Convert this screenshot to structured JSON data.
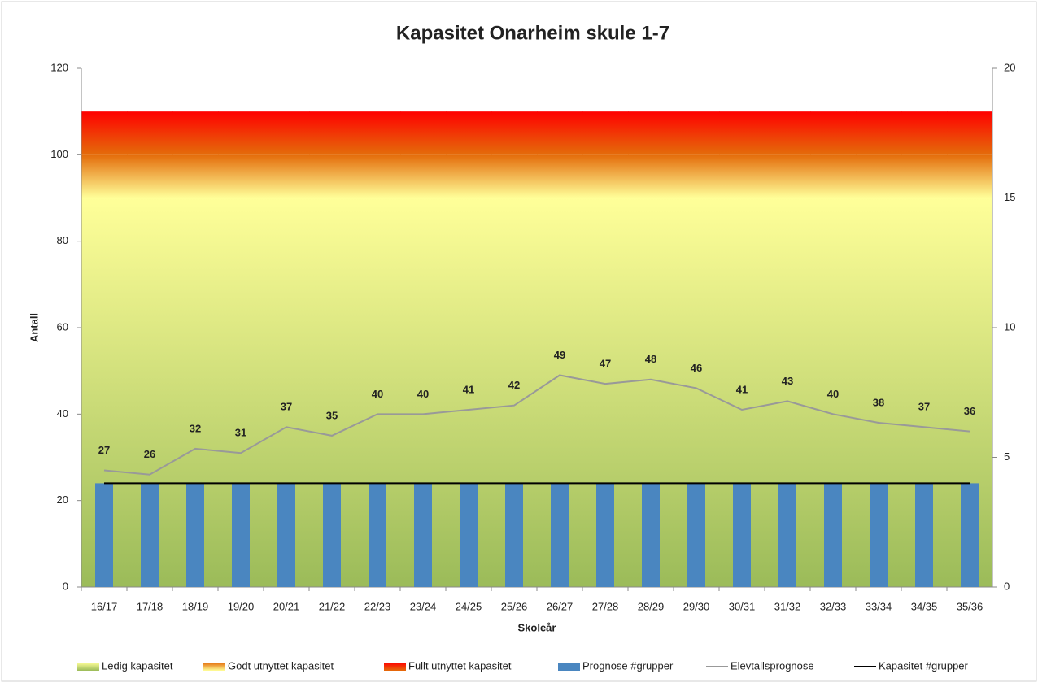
{
  "chart_data": {
    "type": "combo",
    "title": "Kapasitet Onarheim skule 1-7",
    "x_label": "Skoleår",
    "y_label": "Antall",
    "categories": [
      "16/17",
      "17/18",
      "18/19",
      "19/20",
      "20/21",
      "21/22",
      "22/23",
      "23/24",
      "24/25",
      "25/26",
      "26/27",
      "27/28",
      "28/29",
      "29/30",
      "30/31",
      "31/32",
      "32/33",
      "33/34",
      "34/35",
      "35/36"
    ],
    "ylim": [
      0,
      120
    ],
    "yticks": [
      0,
      20,
      40,
      60,
      80,
      100,
      120
    ],
    "y2lim": [
      0,
      20
    ],
    "y2ticks": [
      0,
      5,
      10,
      15,
      20
    ],
    "legend": "bottom",
    "series": [
      {
        "name": "Ledig kapasitet",
        "type": "area",
        "stacked": true,
        "color": [
          "#9bbb59",
          "#ffff99"
        ],
        "values": [
          90,
          90,
          90,
          90,
          90,
          90,
          90,
          90,
          90,
          90,
          90,
          90,
          90,
          90,
          90,
          90,
          90,
          90,
          90,
          90
        ]
      },
      {
        "name": "Godt utnyttet kapasitet",
        "type": "area",
        "stacked": true,
        "color": [
          "#ffff99",
          "#e46c0a"
        ],
        "values": [
          10,
          10,
          10,
          10,
          10,
          10,
          10,
          10,
          10,
          10,
          10,
          10,
          10,
          10,
          10,
          10,
          10,
          10,
          10,
          10
        ]
      },
      {
        "name": "Fullt utnyttet kapasitet",
        "type": "area",
        "stacked": true,
        "color": [
          "#e46c0a",
          "#ff0000"
        ],
        "values": [
          10,
          10,
          10,
          10,
          10,
          10,
          10,
          10,
          10,
          10,
          10,
          10,
          10,
          10,
          10,
          10,
          10,
          10,
          10,
          10
        ]
      },
      {
        "name": "Prognose #grupper",
        "type": "bar",
        "axis": "y2",
        "color": "#4a86c0",
        "values": [
          4,
          4,
          4,
          4,
          4,
          4,
          4,
          4,
          4,
          4,
          4,
          4,
          4,
          4,
          4,
          4,
          4,
          4,
          4,
          4
        ]
      },
      {
        "name": "Elevtallsprognose",
        "type": "line",
        "color": "#999999",
        "data_labels": true,
        "values": [
          27,
          26,
          32,
          31,
          37,
          35,
          40,
          40,
          41,
          42,
          49,
          47,
          48,
          46,
          41,
          43,
          40,
          38,
          37,
          36
        ]
      },
      {
        "name": "Kapasitet #grupper",
        "type": "line",
        "axis": "y2",
        "color": "#000000",
        "values": [
          4,
          4,
          4,
          4,
          4,
          4,
          4,
          4,
          4,
          4,
          4,
          4,
          4,
          4,
          4,
          4,
          4,
          4,
          4,
          4
        ]
      }
    ]
  }
}
